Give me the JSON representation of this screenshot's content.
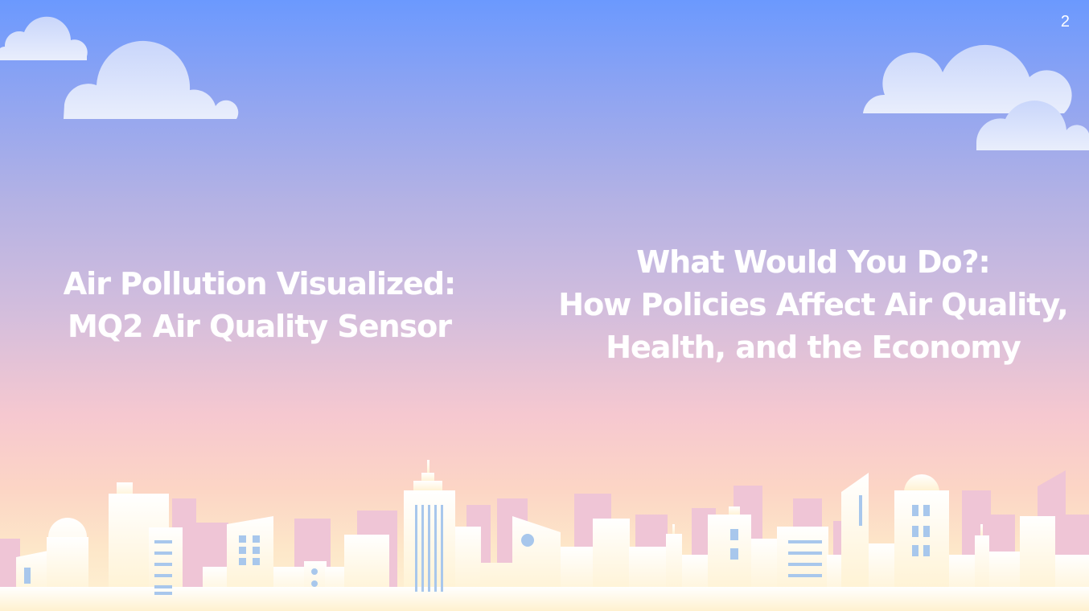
{
  "slide": {
    "number": "2",
    "left_title": {
      "line1": "Air Pollution Visualized:",
      "line2": "MQ2 Air Quality Sensor"
    },
    "right_title": {
      "line1": "What Would You Do?:",
      "line2": "How Policies Affect Air Quality,",
      "line3": "Health, and the Economy"
    }
  },
  "colors": {
    "sky_top": "#6b99fe",
    "sky_bottom": "#fef3d6",
    "cloud": "#d6e0fb",
    "building_back": "#efc6d6",
    "building_front": "#fff6e0",
    "window": "#a7c8ec"
  },
  "illustration": {
    "clouds": "cloud-icon",
    "skyline": "city-skyline-illustration"
  }
}
